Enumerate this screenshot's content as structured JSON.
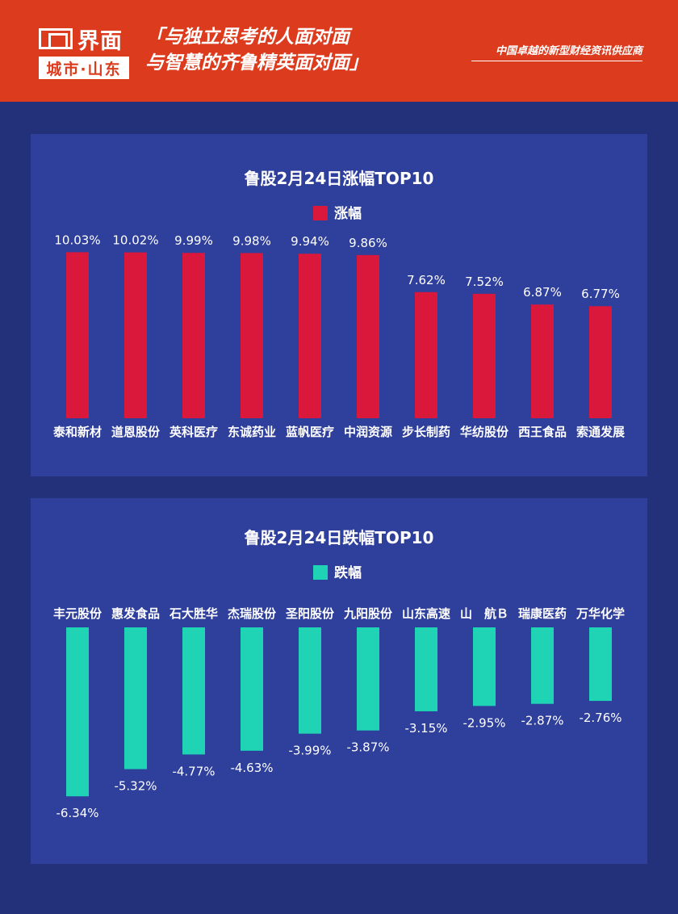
{
  "header": {
    "logo_word": "界面",
    "logo_sub": "城市·山东",
    "slogan_line1": "「与独立思考的人面对面",
    "slogan_line2": "与智慧的齐鲁精英面对面」",
    "tagline": "中国卓越的新型财经资讯供应商"
  },
  "colors": {
    "header_bg": "#dd3b1e",
    "page_bg": "#23307a",
    "panel_bg": "#2f3f9c",
    "gain_bar": "#d9183b",
    "loss_bar": "#1fd3b5"
  },
  "chart_data": [
    {
      "type": "bar",
      "title": "鲁股2月24日涨幅TOP10",
      "series": [
        {
          "name": "涨幅",
          "color": "#d9183b",
          "values": [
            10.03,
            10.02,
            9.99,
            9.98,
            9.94,
            9.86,
            7.62,
            7.52,
            6.87,
            6.77
          ]
        }
      ],
      "categories": [
        "泰和新材",
        "道恩股份",
        "英科医疗",
        "东诚药业",
        "蓝帆医疗",
        "中润资源",
        "步长制药",
        "华纺股份",
        "西王食品",
        "索通发展"
      ],
      "value_labels": [
        "10.03%",
        "10.02%",
        "9.99%",
        "9.98%",
        "9.94%",
        "9.86%",
        "7.62%",
        "7.52%",
        "6.87%",
        "6.77%"
      ],
      "ylim": [
        0,
        11
      ],
      "grid": false,
      "legend": "top-center"
    },
    {
      "type": "bar",
      "title": "鲁股2月24日跌幅TOP10",
      "series": [
        {
          "name": "跌幅",
          "color": "#1fd3b5",
          "values": [
            -6.34,
            -5.32,
            -4.77,
            -4.63,
            -3.99,
            -3.87,
            -3.15,
            -2.95,
            -2.87,
            -2.76
          ]
        }
      ],
      "categories": [
        "丰元股份",
        "惠发食品",
        "石大胜华",
        "杰瑞股份",
        "圣阳股份",
        "九阳股份",
        "山东高速",
        "山　航Ｂ",
        "瑞康医药",
        "万华化学"
      ],
      "value_labels": [
        "-6.34%",
        "-5.32%",
        "-4.77%",
        "-4.63%",
        "-3.99%",
        "-3.87%",
        "-3.15%",
        "-2.95%",
        "-2.87%",
        "-2.76%"
      ],
      "ylim": [
        -7,
        0
      ],
      "grid": false,
      "legend": "top-center"
    }
  ]
}
